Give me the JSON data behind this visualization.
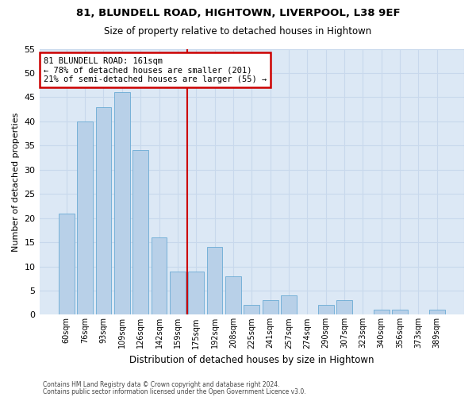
{
  "title1": "81, BLUNDELL ROAD, HIGHTOWN, LIVERPOOL, L38 9EF",
  "title2": "Size of property relative to detached houses in Hightown",
  "xlabel": "Distribution of detached houses by size in Hightown",
  "ylabel": "Number of detached properties",
  "categories": [
    "60sqm",
    "76sqm",
    "93sqm",
    "109sqm",
    "126sqm",
    "142sqm",
    "159sqm",
    "175sqm",
    "192sqm",
    "208sqm",
    "225sqm",
    "241sqm",
    "257sqm",
    "274sqm",
    "290sqm",
    "307sqm",
    "323sqm",
    "340sqm",
    "356sqm",
    "373sqm",
    "389sqm"
  ],
  "values": [
    21,
    40,
    43,
    46,
    34,
    16,
    9,
    9,
    14,
    8,
    2,
    3,
    4,
    0,
    2,
    3,
    0,
    1,
    1,
    0,
    1
  ],
  "bar_color": "#b8d0e8",
  "bar_edge_color": "#6aaad4",
  "vline_x": 6.5,
  "annotation_line1": "81 BLUNDELL ROAD: 161sqm",
  "annotation_line2": "← 78% of detached houses are smaller (201)",
  "annotation_line3": "21% of semi-detached houses are larger (55) →",
  "annotation_box_color": "#ffffff",
  "annotation_box_edge_color": "#cc0000",
  "vline_color": "#cc0000",
  "ylim": [
    0,
    55
  ],
  "yticks": [
    0,
    5,
    10,
    15,
    20,
    25,
    30,
    35,
    40,
    45,
    50,
    55
  ],
  "grid_color": "#c8d8ec",
  "background_color": "#dce8f5",
  "footer1": "Contains HM Land Registry data © Crown copyright and database right 2024.",
  "footer2": "Contains public sector information licensed under the Open Government Licence v3.0."
}
